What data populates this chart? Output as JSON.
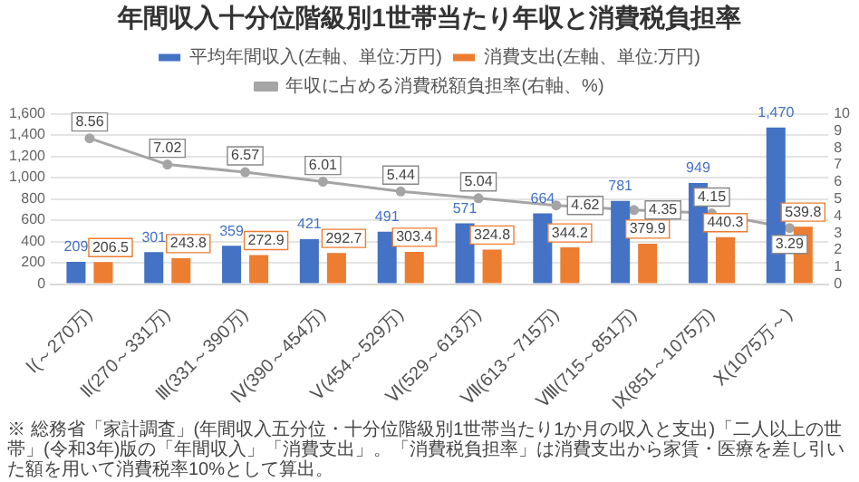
{
  "chart_data": {
    "type": "bar",
    "title": "年間収入十分位階級別1世帯当たり年収と消費税負担率",
    "categories": [
      "Ⅰ(～270万)",
      "Ⅱ(270～331万)",
      "Ⅲ(331～390万)",
      "Ⅳ(390～454万)",
      "Ⅴ(454～529万)",
      "Ⅵ(529～613万)",
      "Ⅶ(613～715万)",
      "Ⅷ(715～851万)",
      "Ⅸ(851～1075万)",
      "Ⅹ(1075万～)"
    ],
    "series": [
      {
        "name": "平均年間収入(左軸、単位:万円)",
        "color": "#4472c4",
        "values": [
          209,
          301,
          359,
          421,
          491,
          571,
          664,
          781,
          949,
          1470
        ],
        "value_labels": [
          "209",
          "301",
          "359",
          "421",
          "491",
          "571",
          "664",
          "781",
          "949",
          "1,470"
        ]
      },
      {
        "name": "消費支出(左軸、単位:万円)",
        "color": "#ed7d31",
        "values": [
          206.5,
          243.8,
          272.9,
          292.7,
          303.4,
          324.8,
          344.2,
          379.9,
          440.3,
          539.8
        ]
      },
      {
        "name": "年収に占める消費税額負担率(右軸、%)",
        "type": "line",
        "axis": "y2",
        "color": "#a5a5a5",
        "values": [
          8.56,
          7.02,
          6.57,
          6.01,
          5.44,
          5.04,
          4.62,
          4.35,
          4.15,
          3.29
        ]
      }
    ],
    "ylim": [
      0,
      1600
    ],
    "yticks": [
      0,
      200,
      400,
      600,
      800,
      {
        "value": 1000,
        "label": "1,000"
      },
      {
        "value": 1200,
        "label": "1,200"
      },
      {
        "value": 1400,
        "label": "1,400"
      },
      {
        "value": 1600,
        "label": "1,600"
      }
    ],
    "y2lim": [
      0,
      10
    ],
    "y2ticks": [
      0,
      1,
      2,
      3,
      4,
      5,
      6,
      7,
      8,
      9,
      10
    ],
    "grid": "y",
    "legend": "top",
    "marker": "circle",
    "data_labels": true,
    "annotations": [
      "※ 総務省「家計調査」(年間収入五分位・十分位階級別1世帯当たり1か月の収入と支出)「二人以上の世帯」(令和3年)版の「年間収入」「消費支出」。「消費税負担率」は消費支出から家賃・医療を差し引いた額を用いて消費税率10%として算出。"
    ]
  }
}
